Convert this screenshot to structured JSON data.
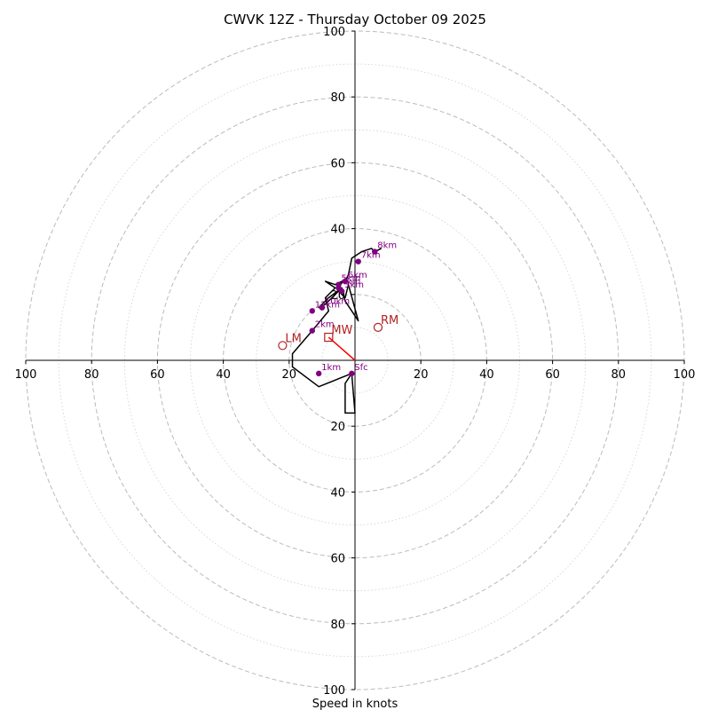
{
  "chart_data": {
    "type": "hodograph",
    "title": "CWVK 12Z - Thursday October 09 2025",
    "xlabel": "Speed in knots",
    "units": "knots",
    "range": 100,
    "ring_step_major": 20,
    "ring_step_minor": 10,
    "tick_values": [
      20,
      40,
      60,
      80,
      100
    ],
    "tick_labels": [
      "20",
      "40",
      "60",
      "80",
      "100"
    ],
    "colors": {
      "trace": "#000000",
      "height_marker": "#800080",
      "storm_marker": "#b22222",
      "motion_vector": "#ff0000",
      "grid": "#bbbbbb"
    },
    "trace": [
      [
        -1,
        -4
      ],
      [
        -3,
        -7
      ],
      [
        -3,
        -16
      ],
      [
        0,
        -16
      ],
      [
        -1,
        -4
      ],
      [
        -11,
        -8
      ],
      [
        -19,
        -2
      ],
      [
        -19,
        2
      ],
      [
        -13,
        9
      ],
      [
        -8,
        15
      ],
      [
        -9,
        19
      ],
      [
        -6,
        22
      ],
      [
        -9,
        24
      ],
      [
        -6,
        23
      ],
      [
        -4,
        24
      ],
      [
        -5,
        21
      ],
      [
        -3,
        19
      ],
      [
        -2,
        23
      ],
      [
        1,
        12
      ],
      [
        -3,
        18
      ],
      [
        -4,
        22
      ],
      [
        -8,
        19
      ],
      [
        -11,
        16
      ],
      [
        -9,
        17
      ],
      [
        -5,
        21
      ],
      [
        -5,
        23
      ],
      [
        -3,
        24
      ],
      [
        -2,
        26
      ],
      [
        -1,
        31
      ],
      [
        2,
        33
      ],
      [
        5,
        34
      ],
      [
        6,
        33
      ],
      [
        8,
        34
      ]
    ],
    "height_markers": [
      {
        "label": "Sfc",
        "u": -1,
        "v": -4
      },
      {
        "label": "1km",
        "u": -11,
        "v": -4
      },
      {
        "label": "2km",
        "u": -13,
        "v": 9
      },
      {
        "label": "3km",
        "u": -4,
        "v": 21
      },
      {
        "label": "4km",
        "u": -5,
        "v": 22
      },
      {
        "label": "5km",
        "u": -5,
        "v": 23
      },
      {
        "label": "6km",
        "u": -3,
        "v": 24
      },
      {
        "label": "7km",
        "u": 1,
        "v": 30
      },
      {
        "label": "8km",
        "u": 6,
        "v": 33
      },
      {
        "label": "12km",
        "u": -13,
        "v": 15
      },
      {
        "label": "10km",
        "u": -10,
        "v": 16
      }
    ],
    "storm_motion": [
      {
        "label": "RM",
        "u": 7,
        "v": 10,
        "symbol": "circle"
      },
      {
        "label": "LM",
        "u": -22,
        "v": 4.5,
        "symbol": "circle"
      },
      {
        "label": "MW",
        "u": -8,
        "v": 7,
        "symbol": "square"
      }
    ],
    "motion_vector": {
      "from_u": 0,
      "from_v": 0,
      "to_u": -8,
      "to_v": 7
    }
  }
}
